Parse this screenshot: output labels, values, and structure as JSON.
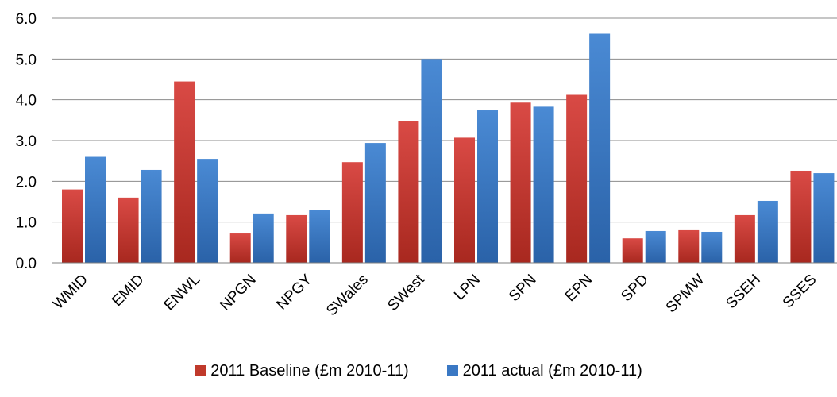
{
  "chart_data": {
    "type": "bar",
    "categories": [
      "WMID",
      "EMID",
      "ENWL",
      "NPGN",
      "NPGY",
      "SWales",
      "SWest",
      "LPN",
      "SPN",
      "EPN",
      "SPD",
      "SPMW",
      "SSEH",
      "SSES"
    ],
    "series": [
      {
        "name": "2011 Baseline (£m 2010-11)",
        "color": "#c0392b",
        "values": [
          1.8,
          1.6,
          4.45,
          0.72,
          1.17,
          2.47,
          3.48,
          3.07,
          3.93,
          4.12,
          0.6,
          0.8,
          1.17,
          2.26
        ]
      },
      {
        "name": "2011 actual (£m 2010-11)",
        "color": "#3a78c4",
        "values": [
          2.6,
          2.28,
          2.55,
          1.21,
          1.3,
          2.94,
          5.0,
          3.74,
          3.83,
          5.62,
          0.78,
          0.76,
          1.52,
          2.2
        ]
      }
    ],
    "yticks": [
      "0.0",
      "1.0",
      "2.0",
      "3.0",
      "4.0",
      "5.0",
      "6.0"
    ],
    "ylim": [
      0,
      6
    ],
    "grid": true,
    "legend_position": "bottom",
    "title": "",
    "xlabel": "",
    "ylabel": ""
  }
}
